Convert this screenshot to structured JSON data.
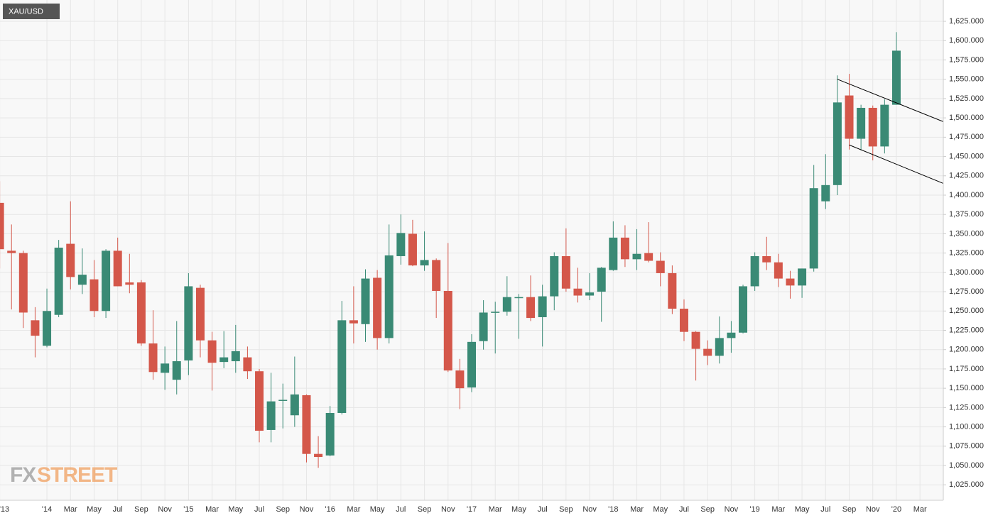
{
  "chart_data": {
    "type": "candlestick",
    "title": "XAU/USD",
    "watermark": [
      "FX",
      "STREET"
    ],
    "categories": [
      "'13",
      null,
      null,
      null,
      "'14",
      null,
      "Mar",
      null,
      "May",
      null,
      "Jul",
      null,
      "Sep",
      null,
      "Nov",
      null,
      "'15",
      null,
      "Mar",
      null,
      "May",
      null,
      "Jul",
      null,
      "Sep",
      null,
      "Nov",
      null,
      "'16",
      null,
      "Mar",
      null,
      "May",
      null,
      "Jul",
      null,
      "Sep",
      null,
      "Nov",
      null,
      "'17",
      null,
      "Mar",
      null,
      "May",
      null,
      "Jul",
      null,
      "Sep",
      null,
      "Nov",
      null,
      "'18",
      null,
      "Mar",
      null,
      "May",
      null,
      "Jul",
      null,
      "Sep",
      null,
      "Nov",
      null,
      "'19",
      null,
      "Mar",
      null,
      "May",
      null,
      "Jul",
      null,
      "Sep",
      null,
      "Nov",
      null,
      "'20",
      null,
      "Mar"
    ],
    "open": [
      1390,
      1328,
      1325,
      1238,
      1205,
      1245,
      1337,
      1284,
      1291,
      1250,
      1328,
      1287,
      1287,
      1208,
      1170,
      1161,
      1186,
      1280,
      1212,
      1184,
      1185,
      1190,
      1172,
      1096,
      1134,
      1115,
      1141,
      1065,
      1063,
      1118,
      1238,
      1233,
      1293,
      1215,
      1321,
      1350,
      1309,
      1316,
      1276,
      1173,
      1151,
      1211,
      1248,
      1249,
      1268,
      1268,
      1242,
      1269,
      1321,
      1279,
      1270,
      1275,
      1303,
      1345,
      1317,
      1325,
      1315,
      1299,
      1253,
      1223,
      1201,
      1192,
      1215,
      1222,
      1282,
      1321,
      1313,
      1292,
      1283,
      1305,
      1392,
      1413,
      1529,
      1473,
      1513,
      1463,
      1517,
      null,
      null
    ],
    "high": [
      1418,
      1362,
      1328,
      1255,
      1279,
      1342,
      1392,
      1331,
      1316,
      1330,
      1345,
      1324,
      1290,
      1251,
      1204,
      1237,
      1299,
      1284,
      1223,
      1224,
      1232,
      1204,
      1175,
      1170,
      1156,
      1191,
      1142,
      1088,
      1127,
      1263,
      1282,
      1304,
      1303,
      1362,
      1375,
      1368,
      1353,
      1318,
      1338,
      1188,
      1220,
      1264,
      1262,
      1295,
      1272,
      1296,
      1284,
      1326,
      1357,
      1306,
      1299,
      1307,
      1366,
      1361,
      1356,
      1365,
      1326,
      1309,
      1265,
      1224,
      1212,
      1243,
      1237,
      1284,
      1326,
      1346,
      1324,
      1302,
      1305,
      1439,
      1453,
      1555,
      1557,
      1517,
      1516,
      1524,
      1611,
      null,
      null
    ],
    "low": [
      1305,
      1252,
      1228,
      1190,
      1203,
      1242,
      1278,
      1272,
      1242,
      1241,
      1282,
      1273,
      1205,
      1161,
      1148,
      1142,
      1167,
      1190,
      1147,
      1176,
      1170,
      1162,
      1080,
      1080,
      1098,
      1100,
      1054,
      1047,
      1062,
      1116,
      1208,
      1210,
      1200,
      1208,
      1310,
      1308,
      1302,
      1241,
      1171,
      1123,
      1145,
      1200,
      1195,
      1244,
      1214,
      1237,
      1204,
      1251,
      1275,
      1261,
      1264,
      1236,
      1302,
      1307,
      1303,
      1313,
      1282,
      1246,
      1211,
      1160,
      1180,
      1182,
      1196,
      1221,
      1276,
      1303,
      1281,
      1266,
      1267,
      1301,
      1382,
      1400,
      1459,
      1458,
      1445,
      1454,
      1517,
      null,
      null
    ],
    "close": [
      1330,
      1325,
      1248,
      1218,
      1250,
      1332,
      1294,
      1297,
      1250,
      1328,
      1282,
      1284,
      1208,
      1171,
      1182,
      1185,
      1282,
      1212,
      1183,
      1190,
      1198,
      1172,
      1095,
      1133,
      1135,
      1142,
      1065,
      1061,
      1118,
      1238,
      1234,
      1292,
      1215,
      1322,
      1351,
      1309,
      1316,
      1276,
      1173,
      1150,
      1210,
      1248,
      1249,
      1268,
      1268,
      1241,
      1269,
      1321,
      1279,
      1270,
      1274,
      1306,
      1345,
      1317,
      1324,
      1315,
      1299,
      1253,
      1223,
      1201,
      1192,
      1215,
      1222,
      1282,
      1321,
      1313,
      1292,
      1283,
      1305,
      1409,
      1413,
      1520,
      1473,
      1513,
      1463,
      1517,
      1587,
      null,
      null
    ],
    "up_color": "#3a8a75",
    "down_color": "#d4574a",
    "trendlines": [
      {
        "x": [
          71,
          80
        ],
        "y": [
          1550,
          1495
        ],
        "color": "#000000"
      },
      {
        "x": [
          72,
          80
        ],
        "y": [
          1465,
          1415
        ],
        "color": "#000000"
      }
    ],
    "ylim": [
      1005,
      1652.6
    ],
    "yticks": [
      {
        "value": 1025,
        "label": "1,025.000"
      },
      {
        "value": 1050,
        "label": "1,050.000"
      },
      {
        "value": 1075,
        "label": "1,075.000"
      },
      {
        "value": 1100,
        "label": "1,100.000"
      },
      {
        "value": 1125,
        "label": "1,125.000"
      },
      {
        "value": 1150,
        "label": "1,150.000"
      },
      {
        "value": 1175,
        "label": "1,175.000"
      },
      {
        "value": 1200,
        "label": "1,200.000"
      },
      {
        "value": 1225,
        "label": "1,225.000"
      },
      {
        "value": 1250,
        "label": "1,250.000"
      },
      {
        "value": 1275,
        "label": "1,275.000"
      },
      {
        "value": 1300,
        "label": "1,300.000"
      },
      {
        "value": 1325,
        "label": "1,325.000"
      },
      {
        "value": 1350,
        "label": "1,350.000"
      },
      {
        "value": 1375,
        "label": "1,375.000"
      },
      {
        "value": 1400,
        "label": "1,400.000"
      },
      {
        "value": 1425,
        "label": "1,425.000"
      },
      {
        "value": 1450,
        "label": "1,450.000"
      },
      {
        "value": 1475,
        "label": "1,475.000"
      },
      {
        "value": 1500,
        "label": "1,500.000"
      },
      {
        "value": 1525,
        "label": "1,525.000"
      },
      {
        "value": 1550,
        "label": "1,550.000"
      },
      {
        "value": 1575,
        "label": "1,575.000"
      },
      {
        "value": 1600,
        "label": "1,600.000"
      },
      {
        "value": 1625,
        "label": "1,625.000"
      }
    ],
    "grid": true
  }
}
